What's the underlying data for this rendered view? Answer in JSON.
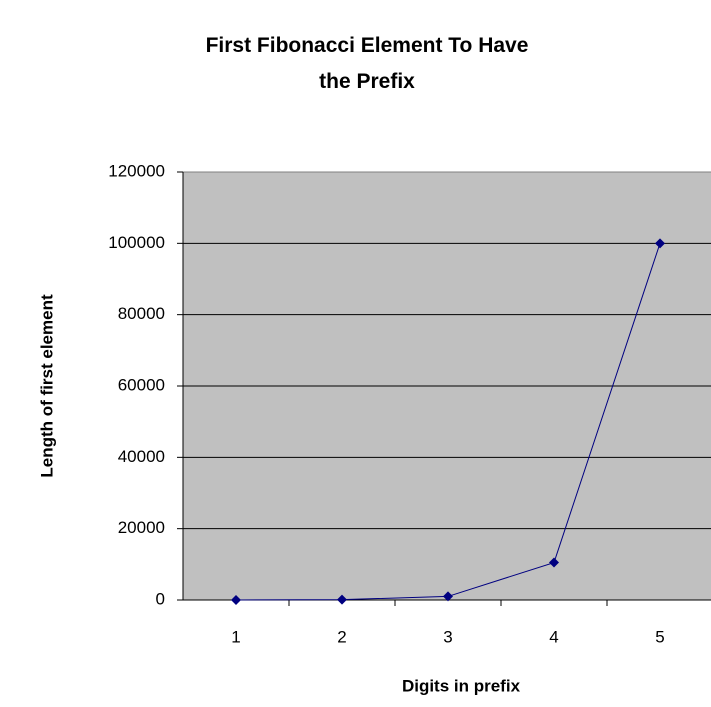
{
  "chart_data": {
    "type": "line",
    "title": "First Fibonacci Element To Have the Prefix",
    "x_label": "Digits in prefix",
    "y_label": "Length of first element",
    "categories": [
      "1",
      "2",
      "3",
      "4",
      "5"
    ],
    "series": [
      {
        "name": "Length of first element",
        "color": "#000080",
        "values": [
          10,
          100,
          1000,
          10500,
          100000
        ]
      }
    ],
    "ylim": [
      0,
      120000
    ],
    "yticks": [
      0,
      20000,
      40000,
      60000,
      80000,
      100000,
      120000
    ],
    "grid": true
  }
}
